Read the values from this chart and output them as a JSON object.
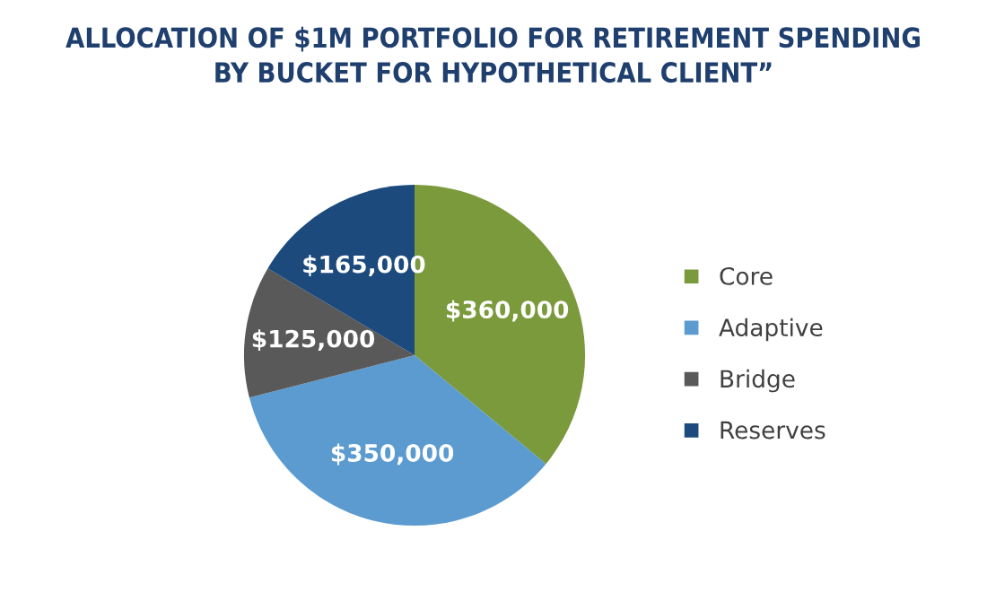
{
  "chart_data": {
    "type": "pie",
    "title": "ALLOCATION OF $1M PORTFOLIO FOR RETIREMENT SPENDING\nBY BUCKET FOR HYPOTHETICAL CLIENT”",
    "categories": [
      "Core",
      "Adaptive",
      "Bridge",
      "Reserves"
    ],
    "values": [
      360000,
      350000,
      125000,
      165000
    ],
    "value_labels": [
      "$360,000",
      "$350,000",
      "$125,000",
      "$165,000"
    ],
    "colors": [
      "#7a9a3c",
      "#5b9bd0",
      "#595959",
      "#1d4a7c"
    ],
    "legend": "right"
  }
}
